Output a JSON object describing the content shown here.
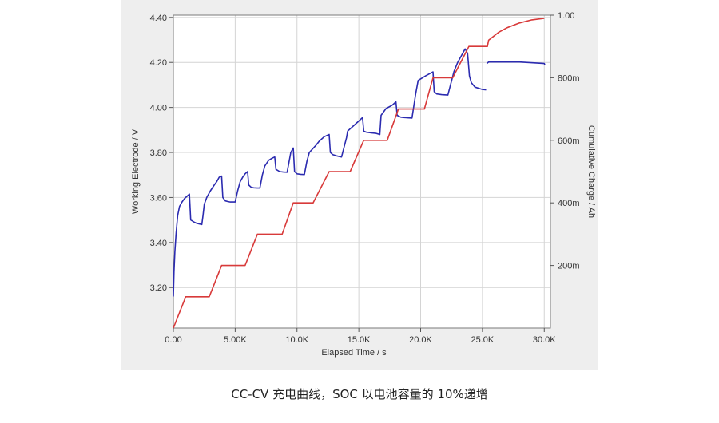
{
  "caption": "CC-CV 充电曲线，SOC 以电池容量的 10%递增",
  "chart_data": {
    "type": "line",
    "xlabel": "Elapsed Time / s",
    "ylabel_left": "Working Electrode / V",
    "ylabel_right": "Cumulative Charge / Ah",
    "xlim": [
      0,
      30500
    ],
    "ylim_left": [
      3.02,
      4.41
    ],
    "ylim_right": [
      0,
      1.0
    ],
    "x_ticks": [
      0,
      5000,
      10000,
      15000,
      20000,
      25000,
      30000
    ],
    "x_tick_labels": [
      "0.00",
      "5.00K",
      "10.0K",
      "15.0K",
      "20.0K",
      "25.0K",
      "30.0K"
    ],
    "y_left_ticks": [
      3.2,
      3.4,
      3.6,
      3.8,
      4.0,
      4.2,
      4.4
    ],
    "y_left_tick_labels": [
      "3.20",
      "3.40",
      "3.60",
      "3.80",
      "4.00",
      "4.20",
      "4.40"
    ],
    "y_right_ticks": [
      0.2,
      0.4,
      0.6,
      0.8,
      1.0
    ],
    "y_right_tick_labels": [
      "200m",
      "400m",
      "600m",
      "800m",
      "1.00"
    ],
    "grid": true,
    "colors": {
      "voltage": "#2b2bb0",
      "charge": "#d83a3a",
      "frame": "#7a7a7a",
      "grid": "#d4d4d4"
    },
    "series": [
      {
        "axis": "left",
        "color": "#2b2bb0",
        "x": [
          0,
          50,
          120,
          220,
          350,
          500,
          700,
          900,
          1100,
          1300,
          1400,
          1700,
          1900,
          2300,
          2400,
          2500,
          2700,
          3000,
          3300,
          3500,
          3700,
          3900,
          4000,
          4200,
          4400,
          4600,
          4800,
          5000,
          5200,
          5400,
          5600,
          5800,
          6000,
          6100,
          6300,
          6500,
          6800,
          7000,
          7200,
          7400,
          7700,
          8000,
          8200,
          8300,
          8600,
          8900,
          9200,
          9500,
          9700,
          9800,
          10000,
          10300,
          10600,
          10800,
          11000,
          11500,
          11800,
          12200,
          12600,
          12700,
          12900,
          13200,
          13600,
          14000,
          14100,
          14500,
          14900,
          15300,
          15400,
          15600,
          16000,
          16400,
          16700,
          16800,
          17200,
          17700,
          18000,
          18100,
          18400,
          18700,
          19300,
          19600,
          19800,
          20400,
          21000,
          21100,
          21300,
          21700,
          22200,
          22700,
          23000,
          23600,
          23800,
          23950,
          24100,
          24400,
          25000,
          25300,
          25350,
          25500,
          28000,
          30000,
          30050
        ],
        "y": [
          3.16,
          3.27,
          3.36,
          3.44,
          3.52,
          3.56,
          3.58,
          3.595,
          3.605,
          3.615,
          3.5,
          3.49,
          3.485,
          3.48,
          3.52,
          3.57,
          3.6,
          3.63,
          3.655,
          3.67,
          3.69,
          3.695,
          3.6,
          3.585,
          3.582,
          3.58,
          3.58,
          3.58,
          3.63,
          3.67,
          3.69,
          3.705,
          3.715,
          3.655,
          3.645,
          3.643,
          3.642,
          3.642,
          3.7,
          3.74,
          3.765,
          3.775,
          3.78,
          3.725,
          3.715,
          3.713,
          3.712,
          3.8,
          3.82,
          3.715,
          3.705,
          3.703,
          3.702,
          3.76,
          3.8,
          3.83,
          3.85,
          3.87,
          3.88,
          3.8,
          3.79,
          3.785,
          3.78,
          3.865,
          3.895,
          3.915,
          3.935,
          3.955,
          3.895,
          3.89,
          3.887,
          3.885,
          3.88,
          3.965,
          3.995,
          4.01,
          4.025,
          3.965,
          3.957,
          3.955,
          3.953,
          4.06,
          4.12,
          4.14,
          4.158,
          4.07,
          4.06,
          4.057,
          4.055,
          4.16,
          4.2,
          4.26,
          4.24,
          4.14,
          4.11,
          4.09,
          4.08,
          4.078,
          4.195,
          4.202,
          4.202,
          4.195,
          4.19
        ],
        "breaks_after_index": [
          97
        ]
      },
      {
        "axis": "right",
        "color": "#d83a3a",
        "x": [
          0,
          1000,
          1100,
          2900,
          3900,
          5800,
          6800,
          8800,
          9700,
          11300,
          12600,
          14300,
          15400,
          17300,
          18200,
          20300,
          21000,
          22600,
          23900,
          25400,
          25500,
          26300,
          27000,
          28000,
          29000,
          30000
        ],
        "y": [
          0,
          0.1,
          0.1,
          0.1,
          0.2,
          0.2,
          0.3,
          0.3,
          0.4,
          0.4,
          0.5,
          0.5,
          0.6,
          0.6,
          0.7,
          0.7,
          0.8,
          0.8,
          0.9,
          0.9,
          0.92,
          0.945,
          0.96,
          0.975,
          0.985,
          0.99
        ]
      }
    ]
  }
}
